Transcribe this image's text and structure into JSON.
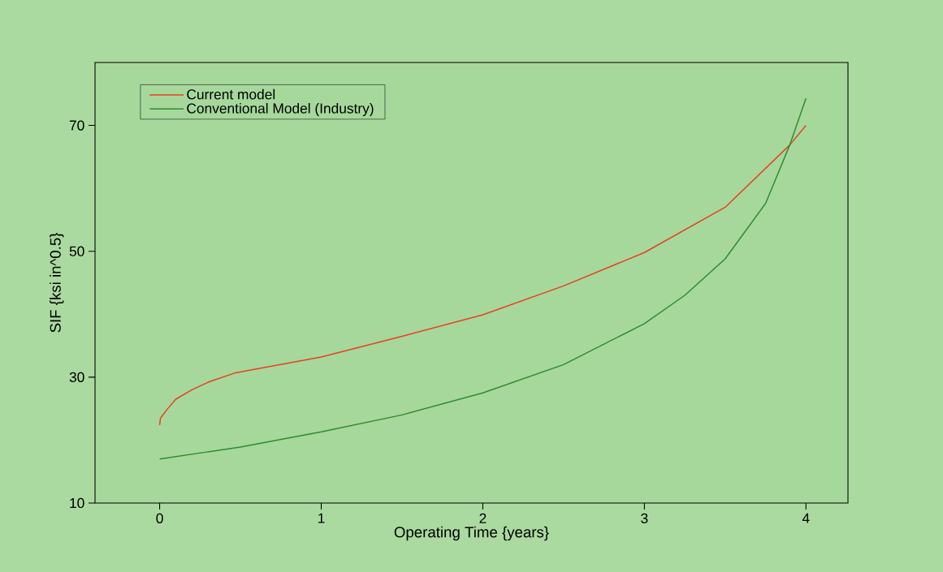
{
  "chart_data": {
    "type": "line",
    "xlabel": "Operating Time {years}",
    "ylabel": "SIF {ksi in^0.5}",
    "xlim": [
      -0.4,
      4.26
    ],
    "ylim": [
      10,
      80
    ],
    "xticks": [
      0,
      1,
      2,
      3,
      4
    ],
    "yticks": [
      10,
      30,
      50,
      70
    ],
    "legend": "top left",
    "series": [
      {
        "name": "Current model",
        "color": "#e8401c",
        "x": [
          0,
          0.005,
          0.02,
          0.05,
          0.1,
          0.2,
          0.3,
          0.47,
          1,
          1.5,
          2,
          2.5,
          3,
          3.5,
          3.9,
          4
        ],
        "values": [
          22.4,
          23.5,
          24,
          25,
          26.5,
          28,
          29.2,
          30.7,
          33.2,
          36.5,
          39.9,
          44.5,
          49.8,
          57,
          66.9,
          70
        ]
      },
      {
        "name": "Conventional Model (Industry)",
        "color": "#2e8b2e",
        "x": [
          0,
          0.5,
          1,
          1.5,
          2,
          2.5,
          3,
          3.25,
          3.5,
          3.75,
          3.9,
          4
        ],
        "values": [
          17,
          18.9,
          21.3,
          24,
          27.5,
          32,
          38.5,
          43,
          48.8,
          57.6,
          66.9,
          74.3
        ]
      }
    ]
  }
}
